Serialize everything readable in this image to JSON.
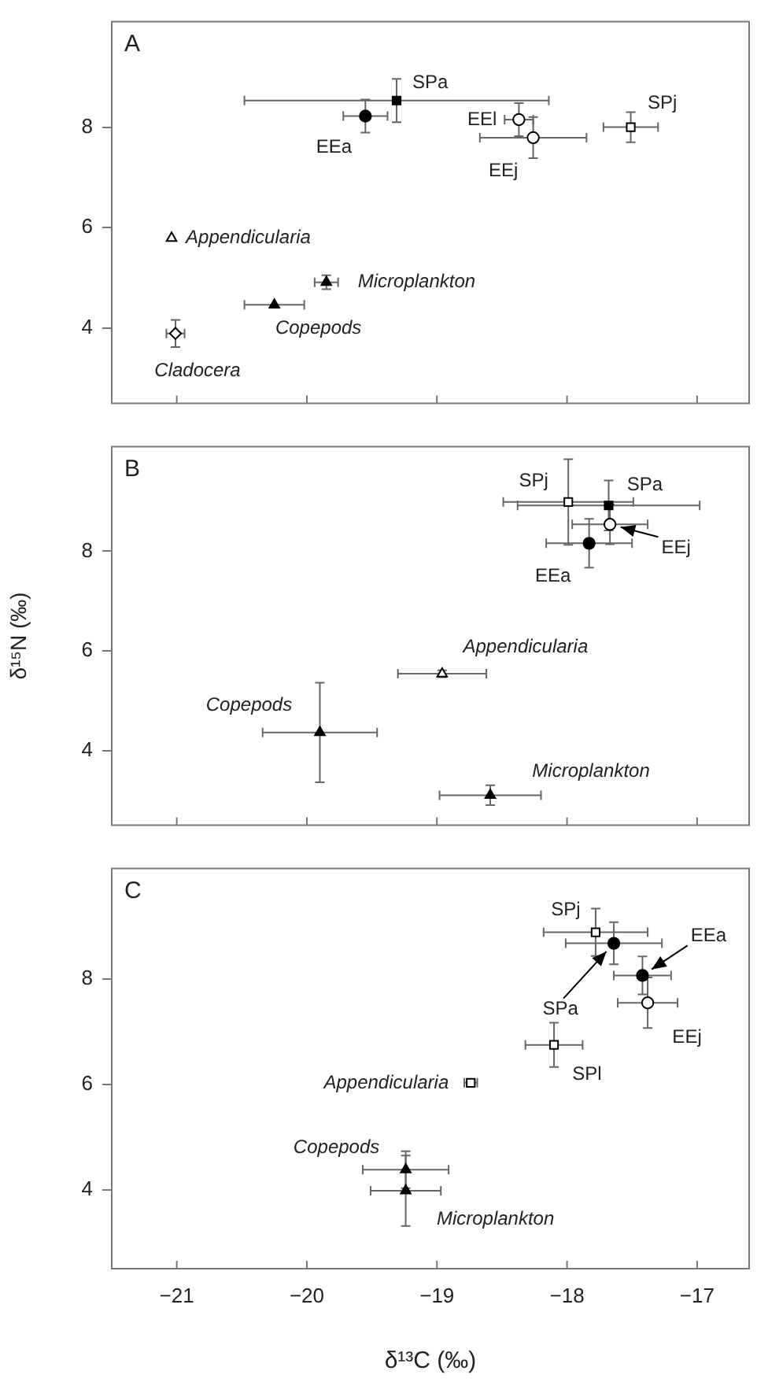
{
  "chart_data": [
    {
      "type": "scatter",
      "title": "A",
      "xlim": [
        -21.5,
        -16.6
      ],
      "ylim": [
        2.5,
        10.1
      ],
      "xticks": [
        -21,
        -20,
        -19,
        -18,
        -17
      ],
      "yticks": [
        4,
        6,
        8
      ],
      "grid": false,
      "legend": false,
      "tick_labels": "y",
      "series": [
        {
          "name": "EEa",
          "color": "#000000",
          "marker": "circle",
          "x": [
            -19.55
          ],
          "values": [
            8.22
          ],
          "errors": [
            0.33
          ],
          "xerrors": [
            0.17
          ]
        },
        {
          "name": "SPa",
          "color": "#000000",
          "marker": "square",
          "x": [
            -19.31
          ],
          "values": [
            8.53
          ],
          "errors": [
            0.43
          ],
          "xerrors": [
            1.17
          ]
        },
        {
          "name": "EEl",
          "color": "#ffffff",
          "marker": "circle",
          "x": [
            -18.37
          ],
          "values": [
            8.15
          ],
          "errors": [
            0.33
          ],
          "xerrors": [
            0.11
          ]
        },
        {
          "name": "EEj",
          "color": "#ffffff",
          "marker": "circle",
          "x": [
            -18.26
          ],
          "values": [
            7.79
          ],
          "errors": [
            0.41
          ],
          "xerrors": [
            0.41
          ]
        },
        {
          "name": "SPj",
          "color": "#ffffff",
          "marker": "square",
          "x": [
            -17.51
          ],
          "values": [
            8.0
          ],
          "errors": [
            0.3
          ],
          "xerrors": [
            0.21
          ]
        },
        {
          "name": "Appendicularia",
          "color": "#ffffff",
          "marker": "triangle",
          "x": [
            -21.04
          ],
          "values": [
            5.79
          ]
        },
        {
          "name": "Microplankton",
          "color": "#000000",
          "marker": "triangle",
          "x": [
            -19.85
          ],
          "values": [
            4.91
          ],
          "errors": [
            0.14
          ],
          "xerrors": [
            0.09
          ]
        },
        {
          "name": "Copepods",
          "color": "#000000",
          "marker": "triangle",
          "x": [
            -20.25
          ],
          "values": [
            4.46
          ],
          "xerrors": [
            0.23
          ]
        },
        {
          "name": "Cladocera",
          "color": "#ffffff",
          "marker": "diamond",
          "x": [
            -21.01
          ],
          "values": [
            3.89
          ],
          "errors": [
            0.27
          ],
          "xerrors": [
            0.07
          ]
        }
      ]
    },
    {
      "type": "scatter",
      "title": "B",
      "ylabel": "δ¹⁵N (‰)",
      "xlim": [
        -21.5,
        -16.6
      ],
      "ylim": [
        2.5,
        10.1
      ],
      "xticks": [
        -21,
        -20,
        -19,
        -18,
        -17
      ],
      "yticks": [
        4,
        6,
        8
      ],
      "grid": false,
      "legend": false,
      "tick_labels": "y",
      "series": [
        {
          "name": "SPj",
          "color": "#ffffff",
          "marker": "square",
          "x": [
            -17.99
          ],
          "values": [
            8.99
          ],
          "errors": [
            0.86
          ],
          "xerrors": [
            0.5
          ]
        },
        {
          "name": "SPa",
          "color": "#000000",
          "marker": "square",
          "x": [
            -17.68
          ],
          "values": [
            8.92
          ],
          "errors": [
            0.5
          ],
          "xerrors": [
            0.7
          ]
        },
        {
          "name": "EEj",
          "color": "#ffffff",
          "marker": "circle",
          "x": [
            -17.67
          ],
          "values": [
            8.54
          ],
          "errors": [
            0.4
          ],
          "xerrors": [
            0.29
          ]
        },
        {
          "name": "EEa",
          "color": "#000000",
          "marker": "circle",
          "x": [
            -17.83
          ],
          "values": [
            8.16
          ],
          "errors": [
            0.49
          ],
          "xerrors": [
            0.33
          ]
        },
        {
          "name": "Appendicularia",
          "color": "#ffffff",
          "marker": "triangle",
          "x": [
            -18.96
          ],
          "values": [
            5.54
          ],
          "errors": [
            0.07
          ],
          "xerrors": [
            0.34
          ]
        },
        {
          "name": "Copepods",
          "color": "#000000",
          "marker": "triangle",
          "x": [
            -19.9
          ],
          "values": [
            4.36
          ],
          "errors": [
            1.0
          ],
          "xerrors": [
            0.44
          ]
        },
        {
          "name": "Microplankton",
          "color": "#000000",
          "marker": "triangle",
          "x": [
            -18.59
          ],
          "values": [
            3.1
          ],
          "errors": [
            0.2
          ],
          "xerrors": [
            0.39
          ]
        }
      ]
    },
    {
      "type": "scatter",
      "title": "C",
      "xlabel": "δ¹³C (‰)",
      "xlim": [
        -21.5,
        -16.6
      ],
      "ylim": [
        2.5,
        10.1
      ],
      "xticks": [
        -21,
        -20,
        -19,
        -18,
        -17
      ],
      "yticks": [
        4,
        6,
        8
      ],
      "grid": false,
      "legend": false,
      "series": [
        {
          "name": "SPj",
          "color": "#ffffff",
          "marker": "square",
          "x": [
            -17.78
          ],
          "values": [
            8.89
          ],
          "errors": [
            0.45
          ],
          "xerrors": [
            0.4
          ]
        },
        {
          "name": "SPa",
          "color": "#000000",
          "marker": "circle",
          "x": [
            -17.64
          ],
          "values": [
            8.68
          ],
          "errors": [
            0.4
          ],
          "xerrors": [
            0.37
          ]
        },
        {
          "name": "EEa",
          "color": "#000000",
          "marker": "circle",
          "x": [
            -17.42
          ],
          "values": [
            8.07
          ],
          "errors": [
            0.36
          ],
          "xerrors": [
            0.22
          ]
        },
        {
          "name": "EEj",
          "color": "#ffffff",
          "marker": "circle",
          "x": [
            -17.38
          ],
          "values": [
            7.55
          ],
          "errors": [
            0.48
          ],
          "xerrors": [
            0.23
          ]
        },
        {
          "name": "SPl",
          "color": "#ffffff",
          "marker": "square",
          "x": [
            -18.1
          ],
          "values": [
            6.75
          ],
          "errors": [
            0.42
          ],
          "xerrors": [
            0.22
          ]
        },
        {
          "name": "Appendicularia",
          "color": "#ffffff",
          "marker": "square",
          "x": [
            -18.74
          ],
          "values": [
            6.03
          ],
          "errors": [
            0.04
          ],
          "xerrors": [
            0.05
          ]
        },
        {
          "name": "Copepods",
          "color": "#000000",
          "marker": "triangle",
          "x": [
            -19.24
          ],
          "values": [
            4.38
          ],
          "errors": [
            0.35
          ],
          "xerrors": [
            0.33
          ]
        },
        {
          "name": "Microplankton",
          "color": "#000000",
          "marker": "triangle",
          "x": [
            -19.24
          ],
          "values": [
            3.98
          ],
          "errors": [
            0.67
          ],
          "xerrors": [
            0.27
          ]
        }
      ]
    }
  ]
}
